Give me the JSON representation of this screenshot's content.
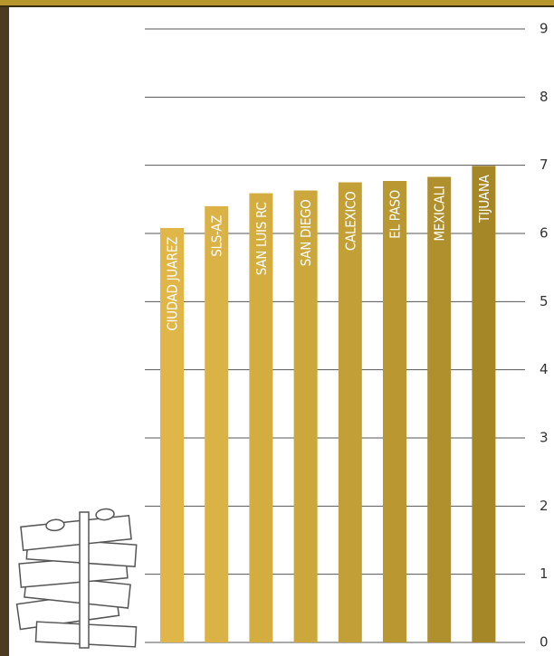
{
  "chart_data": {
    "type": "bar",
    "categories": [
      "CIUDAD JUAREZ",
      "SLS-AZ",
      "SAN LUIS RC",
      "SAN DIEGO",
      "CALEXICO",
      "EL PASO",
      "MEXICALI",
      "TIJUANA"
    ],
    "values": [
      6.08,
      6.4,
      6.59,
      6.63,
      6.75,
      6.77,
      6.83,
      6.99
    ],
    "colors": [
      "#e0b649",
      "#dbb246",
      "#d4ad41",
      "#cca73c",
      "#c3a037",
      "#b99832",
      "#af902d",
      "#a58728"
    ],
    "ylim": [
      0,
      9
    ],
    "yticks": [
      0,
      1,
      2,
      3,
      4,
      5,
      6,
      7,
      8,
      9
    ],
    "grid": true
  }
}
